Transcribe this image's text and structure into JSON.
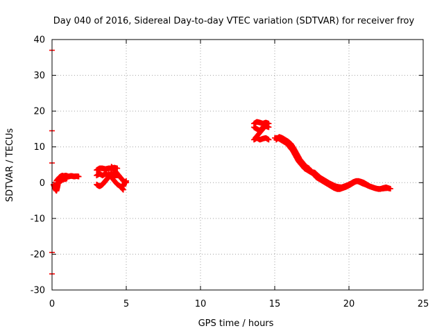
{
  "chart_data": {
    "type": "scatter",
    "title": "Day 040 of 2016, Sidereal Day-to-day VTEC variation (SDTVAR) for receiver froy",
    "xlabel": "GPS time / hours",
    "ylabel": "SDTVAR / TECUs",
    "xlim": [
      0,
      25
    ],
    "ylim": [
      -30,
      40
    ],
    "xticks": [
      0,
      5,
      10,
      15,
      20,
      25
    ],
    "yticks": [
      -30,
      -20,
      -10,
      0,
      10,
      20,
      30,
      40
    ],
    "xtick_labels": [
      "0",
      "5",
      "10",
      "15",
      "20",
      "25"
    ],
    "ytick_labels": [
      "-30",
      "-20",
      "-10",
      "0",
      "10",
      "20",
      "30",
      "40"
    ],
    "grid": true,
    "marker_color": "#ff0000",
    "series": [
      {
        "name": "SDTVAR",
        "segments": [
          {
            "x": [
              0.1,
              0.15,
              0.2,
              0.25,
              0.3,
              0.35,
              0.4
            ],
            "y": [
              -0.5,
              -1.0,
              -1.5,
              -2.0,
              -2.3,
              -1.5,
              -0.5
            ]
          },
          {
            "x": [
              0.3,
              0.4,
              0.5,
              0.6,
              0.7,
              0.8,
              0.9,
              1.0,
              1.1,
              1.2,
              1.3,
              1.4,
              1.5,
              1.6,
              1.7,
              1.8
            ],
            "y": [
              0.5,
              1.0,
              1.5,
              1.8,
              2.0,
              1.8,
              2.0,
              1.9,
              1.7,
              1.8,
              1.9,
              1.8,
              1.7,
              1.8,
              1.8,
              1.7
            ]
          },
          {
            "x": [
              0.3,
              0.4,
              0.5,
              0.6,
              0.7,
              0.8,
              0.9,
              1.0
            ],
            "y": [
              -0.5,
              0.0,
              0.3,
              0.5,
              0.8,
              1.0,
              1.0,
              1.2
            ]
          },
          {
            "x": [
              3.0,
              3.2,
              3.4,
              3.6,
              3.8,
              4.0,
              4.2,
              4.4
            ],
            "y": [
              3.5,
              4.0,
              4.0,
              3.8,
              4.0,
              4.0,
              4.2,
              4.0
            ]
          },
          {
            "x": [
              3.0,
              3.2,
              3.4,
              3.6,
              3.8,
              4.0,
              4.2,
              4.4
            ],
            "y": [
              2.0,
              2.5,
              2.0,
              2.5,
              2.0,
              2.5,
              2.0,
              2.0
            ]
          },
          {
            "x": [
              3.0,
              3.1,
              3.2,
              3.3,
              3.4,
              3.5,
              3.6,
              3.7,
              3.8
            ],
            "y": [
              -0.5,
              -0.8,
              -1.0,
              -0.8,
              -0.5,
              0.0,
              0.5,
              1.0,
              1.5
            ]
          },
          {
            "x": [
              4.0,
              4.2,
              4.4,
              4.6,
              4.8,
              5.0
            ],
            "y": [
              4.5,
              3.5,
              2.5,
              1.5,
              0.5,
              0.0
            ]
          },
          {
            "x": [
              3.8,
              4.0,
              4.2,
              4.4,
              4.6,
              4.7,
              4.8
            ],
            "y": [
              2.5,
              1.5,
              0.5,
              -0.5,
              -1.0,
              -1.5,
              -2.0
            ]
          },
          {
            "x": [
              4.8,
              4.9,
              5.0
            ],
            "y": [
              -1.0,
              0.0,
              0.5
            ]
          },
          {
            "x": [
              13.6,
              13.8,
              14.0,
              14.2,
              14.4,
              14.6
            ],
            "y": [
              16.5,
              17.0,
              16.8,
              16.5,
              16.8,
              16.5
            ]
          },
          {
            "x": [
              13.6,
              13.8,
              14.0,
              14.2,
              14.4,
              14.6
            ],
            "y": [
              15.5,
              15.0,
              14.5,
              15.5,
              15.8,
              15.5
            ]
          },
          {
            "x": [
              13.6,
              13.8,
              14.0,
              14.2,
              14.4,
              14.6
            ],
            "y": [
              12.0,
              12.5,
              12.0,
              12.3,
              12.5,
              12.0
            ]
          },
          {
            "x": [
              13.7,
              13.9,
              14.1,
              14.3,
              14.5
            ],
            "y": [
              12.5,
              13.5,
              14.5,
              15.5,
              16.5
            ]
          },
          {
            "x": [
              15.0,
              15.2,
              15.4,
              15.6,
              15.8,
              16.0,
              16.2,
              16.4,
              16.6,
              16.8,
              17.0,
              17.2,
              17.4,
              17.6,
              17.8,
              18.0,
              18.2,
              18.4,
              18.6,
              18.8,
              19.0,
              19.2,
              19.4,
              19.6,
              19.8,
              20.0,
              20.2,
              20.4,
              20.6,
              20.8,
              21.0,
              21.2,
              21.4,
              21.6,
              21.8,
              22.0,
              22.2,
              22.4,
              22.6,
              22.8
            ],
            "y": [
              12.5,
              12.5,
              12.0,
              11.5,
              11.0,
              10.0,
              9.0,
              7.5,
              6.0,
              5.0,
              4.0,
              3.5,
              3.0,
              2.5,
              1.5,
              1.0,
              0.5,
              0.0,
              -0.5,
              -1.0,
              -1.5,
              -1.8,
              -1.8,
              -1.5,
              -1.2,
              -0.8,
              -0.3,
              0.2,
              0.5,
              0.3,
              0.0,
              -0.5,
              -1.0,
              -1.3,
              -1.6,
              -1.8,
              -1.7,
              -1.6,
              -1.5,
              -1.7
            ]
          },
          {
            "x": [
              15.1,
              15.3,
              15.5,
              15.7,
              15.9,
              16.1,
              16.3,
              16.5,
              16.7,
              16.9,
              17.1,
              17.3,
              17.5,
              17.7,
              17.9,
              18.1,
              18.3,
              18.5,
              18.7,
              18.9,
              19.1,
              19.3,
              19.5,
              19.7,
              19.9,
              20.1,
              20.3,
              20.5,
              20.7,
              20.9,
              21.1,
              21.3,
              21.5,
              21.7,
              21.9,
              22.1,
              22.3,
              22.5,
              22.7
            ],
            "y": [
              12.0,
              12.8,
              12.5,
              12.0,
              11.5,
              10.8,
              9.5,
              8.0,
              6.5,
              5.5,
              4.5,
              4.0,
              3.0,
              2.8,
              2.0,
              1.3,
              0.8,
              0.3,
              -0.2,
              -0.6,
              -1.0,
              -1.2,
              -1.3,
              -1.0,
              -0.7,
              -0.3,
              0.2,
              0.5,
              0.2,
              -0.2,
              -0.5,
              -0.9,
              -1.2,
              -1.5,
              -1.7,
              -1.8,
              -1.5,
              -1.3,
              -1.6
            ]
          }
        ]
      }
    ],
    "edge_ticks": [
      {
        "x": 0,
        "y": 37
      },
      {
        "x": 0,
        "y": 14.5
      },
      {
        "x": 0,
        "y": 5.5
      },
      {
        "x": 0,
        "y": -19.5
      },
      {
        "x": 0,
        "y": -25.5
      }
    ]
  }
}
